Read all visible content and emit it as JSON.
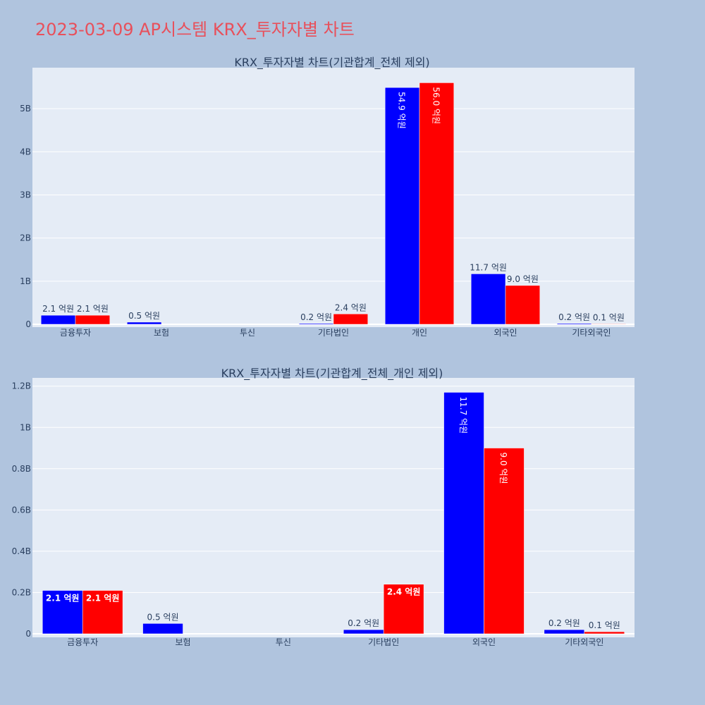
{
  "page": {
    "title": "2023-03-09 AP시스템 KRX_투자자별 차트",
    "background": "#b0c4de",
    "plot_background": "#e5ecf6",
    "title_color": "#e8505b"
  },
  "chart_data": [
    {
      "type": "bar",
      "title": "KRX_투자자별 차트(기관합계_전체 제외)",
      "categories": [
        "금융투자",
        "보험",
        "투신",
        "기타법인",
        "개인",
        "외국인",
        "기타외국인"
      ],
      "series": [
        {
          "color": "#0000ff",
          "values": [
            210000000,
            50000000,
            0,
            20000000,
            5490000000,
            1170000000,
            20000000
          ],
          "labels": [
            "2.1 억원",
            "0.5 억원",
            "",
            "0.2 억원",
            "54.9 억원",
            "11.7 억원",
            "0.2 억원"
          ]
        },
        {
          "color": "#ff0000",
          "values": [
            210000000,
            0,
            0,
            240000000,
            5600000000,
            900000000,
            10000000
          ],
          "labels": [
            "2.1 억원",
            "",
            "",
            "2.4 억원",
            "56.0 억원",
            "9.0 억원",
            "0.1 억원"
          ]
        }
      ],
      "ylim": [
        0,
        5950000000
      ],
      "yticks": [
        {
          "value": 0,
          "label": "0"
        },
        {
          "value": 1000000000,
          "label": "1B"
        },
        {
          "value": 2000000000,
          "label": "2B"
        },
        {
          "value": 3000000000,
          "label": "3B"
        },
        {
          "value": 4000000000,
          "label": "4B"
        },
        {
          "value": 5000000000,
          "label": "5B"
        }
      ],
      "grid": true
    },
    {
      "type": "bar",
      "title": "KRX_투자자별 차트(기관합계_전체_개인 제외)",
      "categories": [
        "금융투자",
        "보험",
        "투신",
        "기타법인",
        "외국인",
        "기타외국인"
      ],
      "series": [
        {
          "color": "#0000ff",
          "values": [
            210000000,
            50000000,
            0,
            20000000,
            1170000000,
            20000000
          ],
          "labels": [
            "2.1 억원",
            "0.5 억원",
            "",
            "0.2 억원",
            "11.7 억원",
            "0.2 억원"
          ]
        },
        {
          "color": "#ff0000",
          "values": [
            210000000,
            0,
            0,
            240000000,
            900000000,
            10000000
          ],
          "labels": [
            "2.1 억원",
            "",
            "",
            "2.4 억원",
            "9.0 억원",
            "0.1 억원"
          ]
        }
      ],
      "ylim": [
        0,
        1240000000
      ],
      "yticks": [
        {
          "value": 0,
          "label": "0"
        },
        {
          "value": 200000000,
          "label": "0.2B"
        },
        {
          "value": 400000000,
          "label": "0.4B"
        },
        {
          "value": 600000000,
          "label": "0.6B"
        },
        {
          "value": 800000000,
          "label": "0.8B"
        },
        {
          "value": 1000000000,
          "label": "1B"
        },
        {
          "value": 1200000000,
          "label": "1.2B"
        }
      ],
      "grid": true
    }
  ]
}
